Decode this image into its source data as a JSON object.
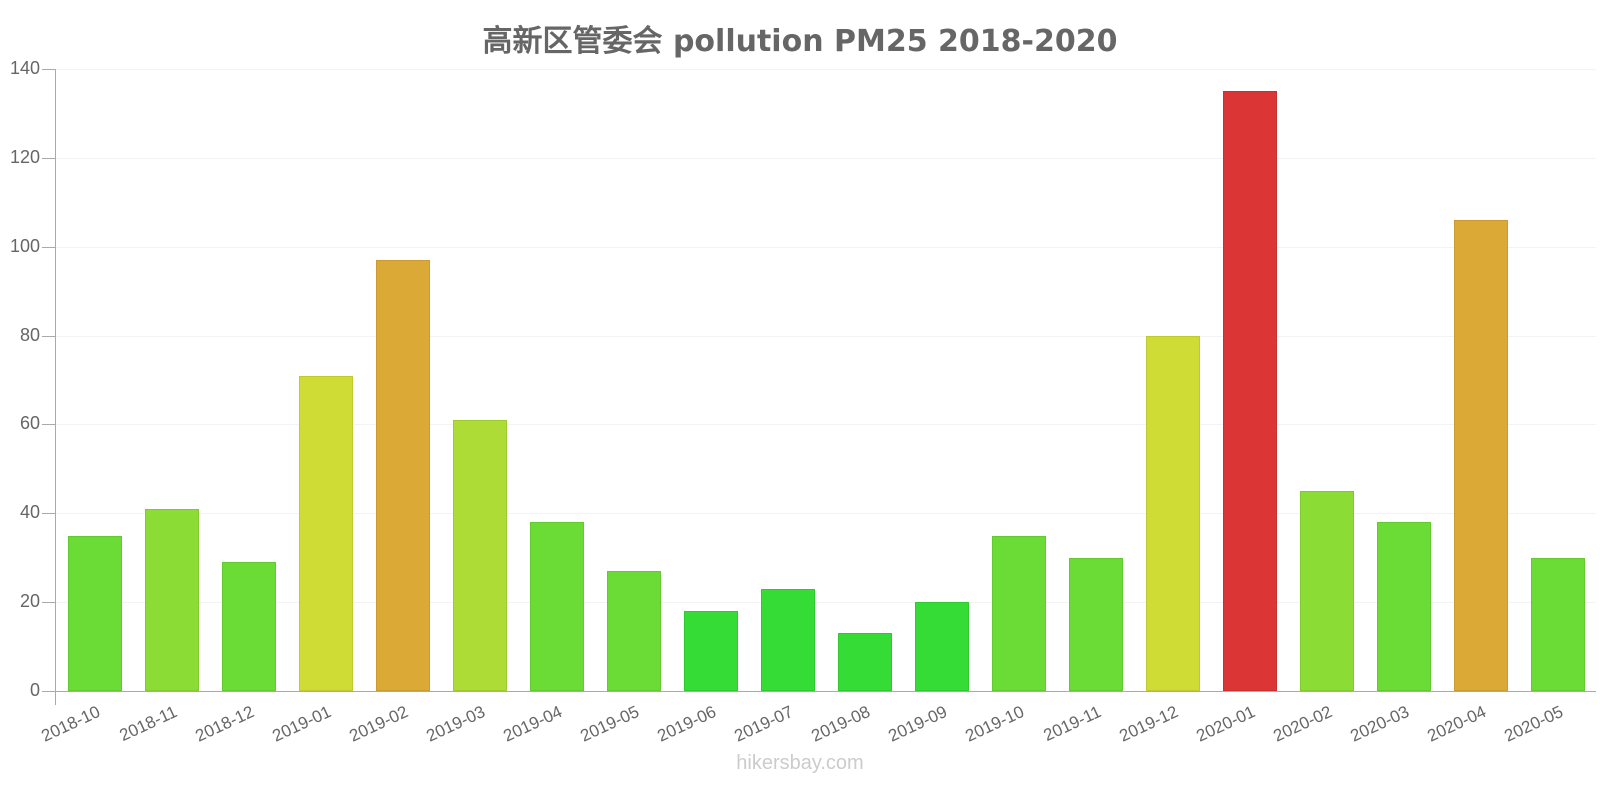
{
  "chart_data": {
    "type": "bar",
    "title": "高新区管委会 pollution PM25 2018-2020",
    "xlabel": "",
    "ylabel": "",
    "ylim": [
      0,
      140
    ],
    "yticks": [
      0,
      20,
      40,
      60,
      80,
      100,
      120,
      140
    ],
    "grid": true,
    "legend": null,
    "categories": [
      "2018-10",
      "2018-11",
      "2018-12",
      "2019-01",
      "2019-02",
      "2019-03",
      "2019-04",
      "2019-05",
      "2019-06",
      "2019-07",
      "2019-08",
      "2019-09",
      "2019-10",
      "2019-11",
      "2019-12",
      "2020-01",
      "2020-02",
      "2020-03",
      "2020-04",
      "2020-05"
    ],
    "values": [
      35,
      41,
      29,
      71,
      97,
      61,
      38,
      27,
      18,
      23,
      13,
      20,
      35,
      30,
      80,
      135,
      45,
      38,
      106,
      30
    ],
    "colors": [
      "#6bdc35",
      "#8bdc35",
      "#6bdc35",
      "#cfdc35",
      "#dba935",
      "#acdc35",
      "#6bdc35",
      "#6bdc35",
      "#35dc35",
      "#35dc35",
      "#35dc35",
      "#35dc35",
      "#6bdc35",
      "#6bdc35",
      "#cfdc35",
      "#db3535",
      "#8bdc35",
      "#6bdc35",
      "#dba935",
      "#6bdc35"
    ]
  },
  "footer": {
    "watermark": "hikersbay.com"
  }
}
